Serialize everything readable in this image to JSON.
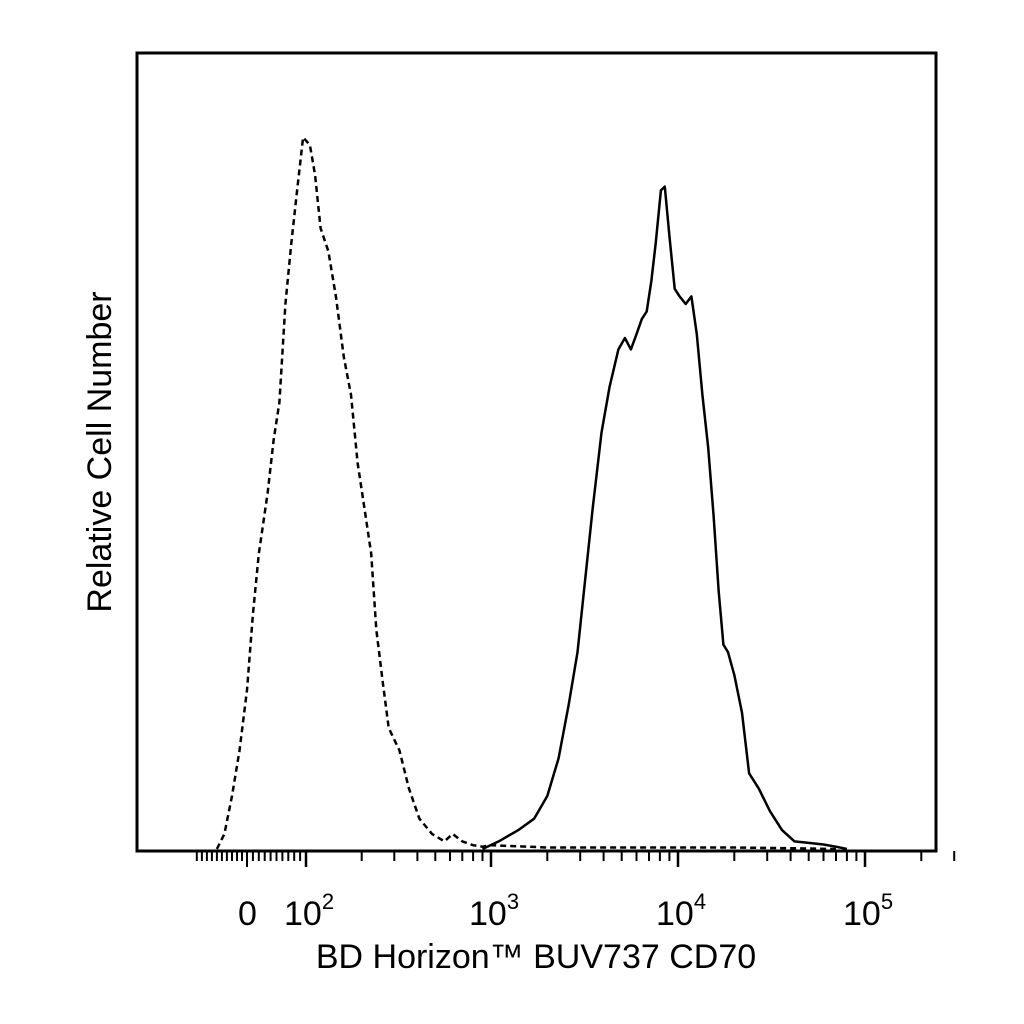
{
  "chart_data": {
    "type": "line",
    "xlabel": "BD Horizon™ BUV737 CD70",
    "ylabel": "Relative Cell Number",
    "x_scale": "biexponential",
    "x_tick_labels": [
      {
        "value": 0,
        "base": "0",
        "exp": ""
      },
      {
        "value": 100,
        "base": "10",
        "exp": "2"
      },
      {
        "value": 1000,
        "base": "10",
        "exp": "3"
      },
      {
        "value": 10000,
        "base": "10",
        "exp": "4"
      },
      {
        "value": 100000,
        "base": "10",
        "exp": "5"
      }
    ],
    "ylim": [
      0,
      100
    ],
    "grid": false,
    "series": [
      {
        "style": "dashed",
        "color": "#000000",
        "points": [
          [
            -60,
            0
          ],
          [
            -45,
            2
          ],
          [
            -30,
            7
          ],
          [
            -15,
            13
          ],
          [
            0,
            21
          ],
          [
            10,
            31
          ],
          [
            20,
            39
          ],
          [
            35,
            47
          ],
          [
            45,
            54
          ],
          [
            55,
            59
          ],
          [
            65,
            72
          ],
          [
            75,
            80
          ],
          [
            85,
            87
          ],
          [
            95,
            94
          ],
          [
            105,
            93
          ],
          [
            112,
            89
          ],
          [
            120,
            82
          ],
          [
            132,
            79
          ],
          [
            145,
            73
          ],
          [
            160,
            65
          ],
          [
            175,
            60
          ],
          [
            190,
            51
          ],
          [
            210,
            44
          ],
          [
            225,
            39
          ],
          [
            240,
            29
          ],
          [
            260,
            22
          ],
          [
            280,
            16
          ],
          [
            320,
            13
          ],
          [
            360,
            8
          ],
          [
            410,
            4
          ],
          [
            480,
            2
          ],
          [
            560,
            1
          ],
          [
            620,
            2
          ],
          [
            700,
            1
          ],
          [
            800,
            0.5
          ],
          [
            900,
            0.3
          ],
          [
            1000,
            0.5
          ],
          [
            2000,
            0.2
          ],
          [
            5000,
            0.2
          ],
          [
            10000,
            0.2
          ],
          [
            20000,
            0.2
          ],
          [
            40000,
            0.1
          ],
          [
            70000,
            0
          ]
        ]
      },
      {
        "style": "solid",
        "color": "#000000",
        "points": [
          [
            900,
            0
          ],
          [
            1100,
            1
          ],
          [
            1400,
            2.5
          ],
          [
            1700,
            4
          ],
          [
            2000,
            7
          ],
          [
            2300,
            12
          ],
          [
            2600,
            19
          ],
          [
            2900,
            26
          ],
          [
            3200,
            36
          ],
          [
            3500,
            45
          ],
          [
            3900,
            55
          ],
          [
            4300,
            61
          ],
          [
            4800,
            66
          ],
          [
            5200,
            67.5
          ],
          [
            5600,
            66
          ],
          [
            6000,
            68
          ],
          [
            6400,
            70
          ],
          [
            6800,
            71
          ],
          [
            7200,
            75
          ],
          [
            7600,
            80
          ],
          [
            8100,
            87
          ],
          [
            8500,
            87.5
          ],
          [
            9000,
            81
          ],
          [
            9600,
            74
          ],
          [
            10200,
            73
          ],
          [
            11000,
            72
          ],
          [
            11800,
            73
          ],
          [
            12600,
            68
          ],
          [
            13500,
            60
          ],
          [
            14500,
            53
          ],
          [
            15500,
            44
          ],
          [
            16500,
            34
          ],
          [
            17500,
            27
          ],
          [
            18500,
            26
          ],
          [
            20000,
            23
          ],
          [
            22000,
            18
          ],
          [
            24000,
            10
          ],
          [
            27000,
            8
          ],
          [
            31000,
            5
          ],
          [
            36000,
            2.5
          ],
          [
            42000,
            1
          ],
          [
            50000,
            0.8
          ],
          [
            60000,
            0.6
          ],
          [
            70000,
            0.3
          ],
          [
            80000,
            0
          ]
        ]
      }
    ]
  }
}
